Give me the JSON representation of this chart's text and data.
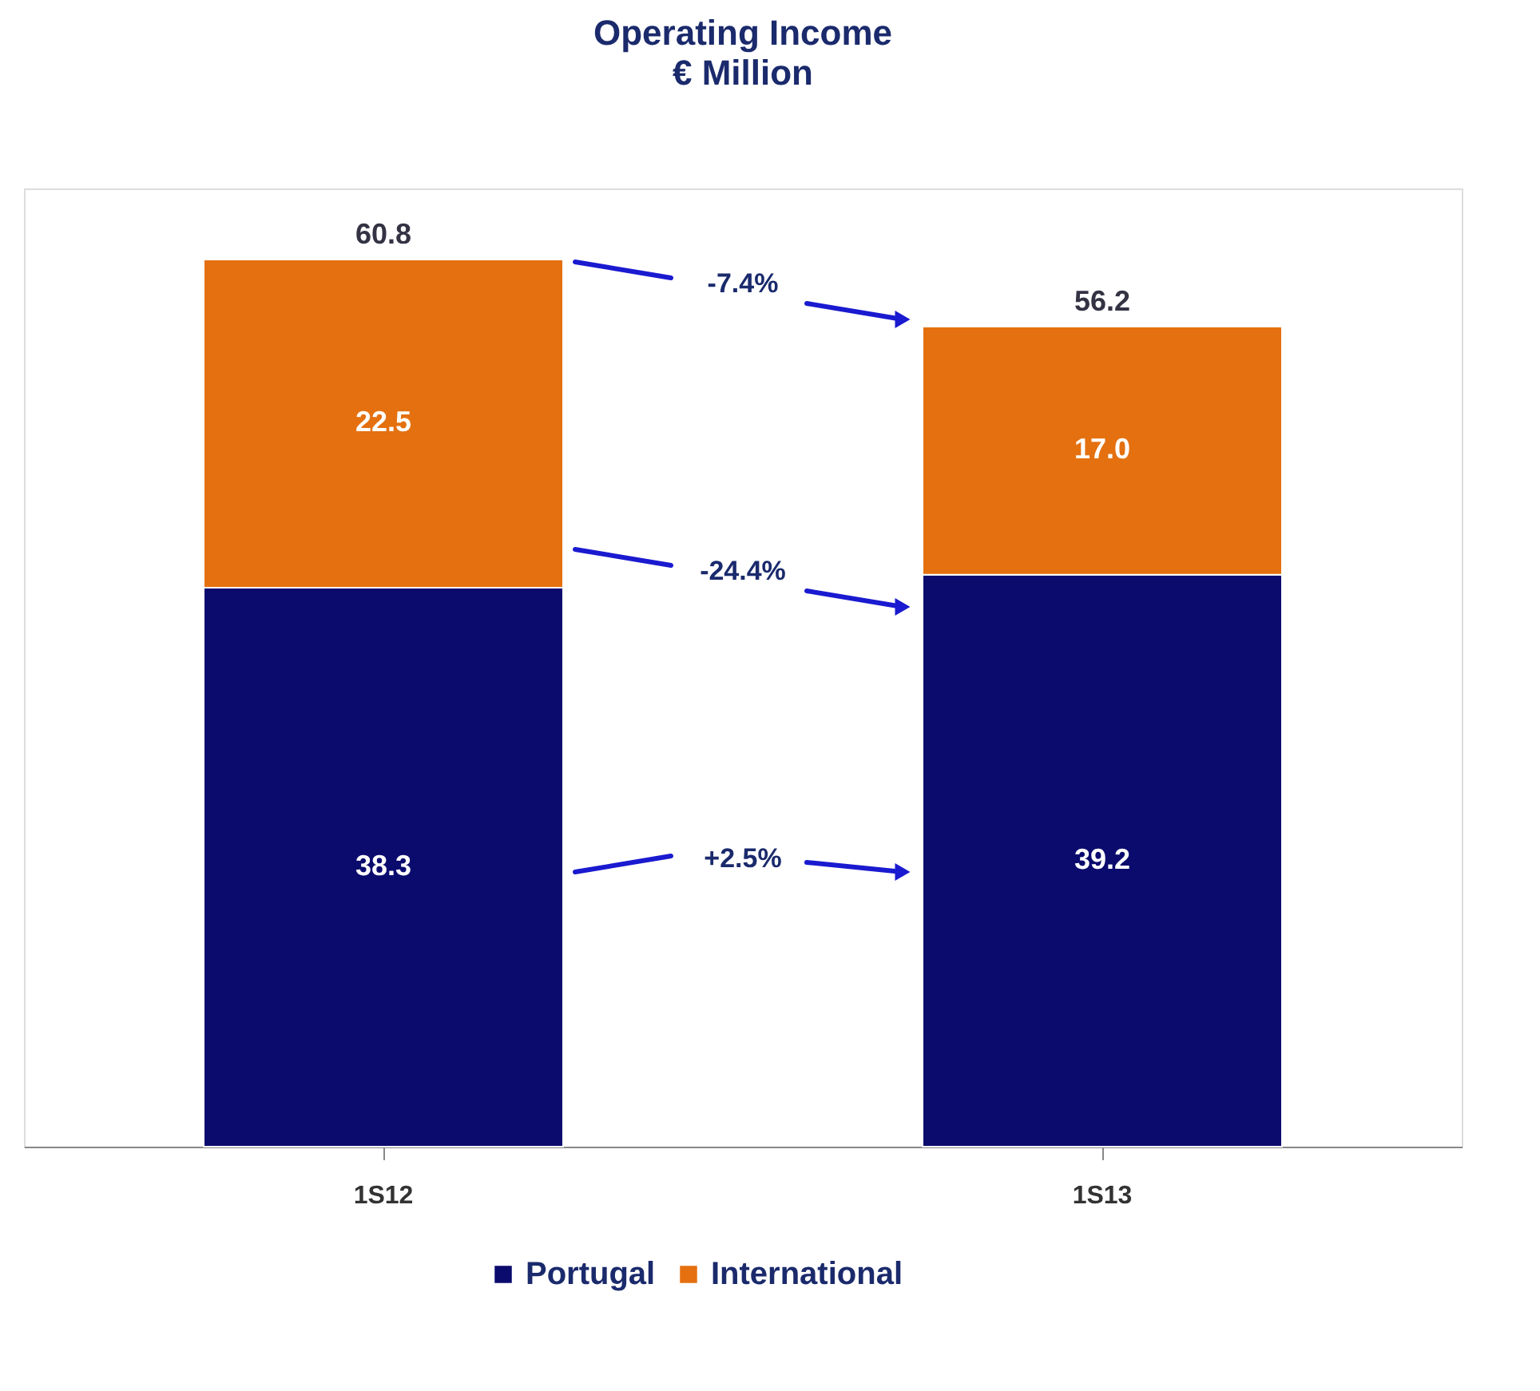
{
  "chart_data": {
    "type": "bar",
    "title": "Operating Income",
    "subtitle": "€ Million",
    "categories": [
      "1S12",
      "1S13"
    ],
    "stacked": true,
    "totals": [
      "60.8",
      "56.2"
    ],
    "series": [
      {
        "name": "Portugal",
        "color": "#0b0b6e",
        "values": [
          38.3,
          39.2
        ],
        "value_labels": [
          "38.3",
          "39.2"
        ]
      },
      {
        "name": "International",
        "color": "#e4700f",
        "values": [
          22.5,
          17.0
        ],
        "value_labels": [
          "22.5",
          "17.0"
        ]
      }
    ],
    "annotations": [
      "-7.4%",
      "-24.4%",
      "+2.5%"
    ],
    "legend": "bottom",
    "grid": false
  }
}
